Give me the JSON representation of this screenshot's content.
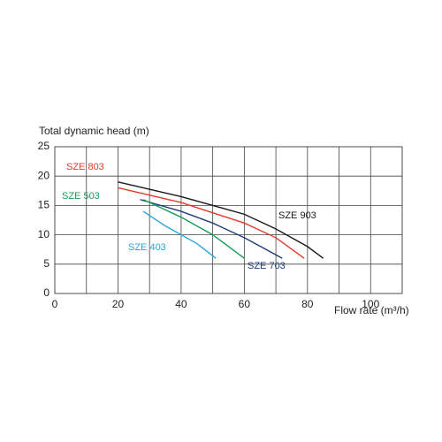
{
  "chart_data": {
    "type": "line",
    "ylabel": "Total dynamic head (m)",
    "xlabel": "Flow rate (m³/h)",
    "xlim": [
      0,
      110
    ],
    "ylim": [
      0,
      25
    ],
    "xticks": [
      0,
      20,
      40,
      60,
      80,
      100
    ],
    "xminor_grid": [
      10,
      30,
      50,
      70,
      90,
      110
    ],
    "yticks": [
      0,
      5,
      10,
      15,
      20,
      25
    ],
    "grid": true,
    "series": [
      {
        "name": "SZE 903",
        "color": "#1a1a1a",
        "x": [
          20,
          40,
          60,
          70,
          80,
          85
        ],
        "values": [
          19,
          16.5,
          13.5,
          11,
          8,
          6
        ]
      },
      {
        "name": "SZE 803",
        "color": "#e03c28",
        "x": [
          20,
          40,
          60,
          70,
          79
        ],
        "values": [
          18,
          15.5,
          12,
          9.5,
          6
        ]
      },
      {
        "name": "SZE 703",
        "color": "#1f3c78",
        "x": [
          27,
          40,
          50,
          60,
          72
        ],
        "values": [
          16,
          14,
          12,
          9.5,
          6
        ]
      },
      {
        "name": "SZE 503",
        "color": "#1a9a5a",
        "x": [
          28,
          40,
          50,
          60
        ],
        "values": [
          16,
          13,
          10,
          6
        ]
      },
      {
        "name": "SZE 403",
        "color": "#2aa6d6",
        "x": [
          28,
          35,
          45,
          51
        ],
        "values": [
          14,
          11.5,
          8.5,
          6
        ]
      }
    ]
  }
}
